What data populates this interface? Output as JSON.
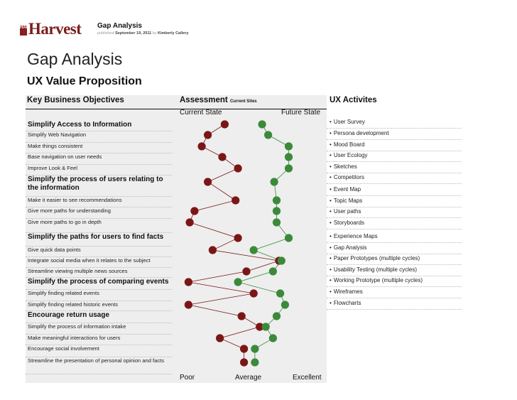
{
  "header": {
    "logo": "Harvest",
    "logo_small": "HARV",
    "doc_title": "Gap Analysis",
    "meta_prefix": "published",
    "meta_date": "September 19, 2011",
    "meta_by": "by",
    "meta_author": "Kimberly Callery"
  },
  "title": "Gap Analysis",
  "subtitle": "UX Value Proposition",
  "columns": {
    "objectives": "Key Business Objectives",
    "assessment": "Assessment",
    "assessment_note": "Current Sites",
    "activities": "UX Activites",
    "current": "Current State",
    "future": "Future State"
  },
  "scale": {
    "poor": "Poor",
    "average": "Average",
    "excellent": "Excellent"
  },
  "activities": [
    "User Survey",
    "Persona development",
    "Mood Board",
    "User Ecology",
    "Sketches",
    "Competitors",
    "Event Map",
    "Topic Maps",
    "User paths",
    "Storyboards",
    "Experience Maps",
    "Gap Analysis",
    "Paper Prototypes (multiple cycles)",
    "Usability Testing (multiple cycles)",
    "Working Prototype (multiple cycles)",
    "Wireframes",
    "Flowcharts"
  ],
  "colors": {
    "current": "#7b1616",
    "future": "#3b8a3b",
    "band": "#eeeeee"
  },
  "chart_data": {
    "type": "line",
    "title": "Assessment",
    "xlabel": "",
    "xlim": [
      0,
      10
    ],
    "xticks": [
      "Poor",
      "Average",
      "Excellent"
    ],
    "categories": [
      "Simplify Access to Information",
      "Simplify Web Navigation",
      "Make things consistent",
      "Base navigation on user needs",
      "Improve Look & Feel",
      "Simplify the process of users relating to the information",
      "Make it easier to see recommendations",
      "Give more paths for understanding",
      "Give more paths to go in depth",
      "Simplify the paths for users to find facts",
      "Give quick data points",
      "Integrate social media when it relates to the subject",
      "Streamline viewing multiple news sources",
      "Simplify the process of comparing events",
      "Simplify finding related events",
      "Simplify finding related historic events",
      "Encourage return usage",
      "Simplify the process of information intake",
      "Make meaningful interactions for users",
      "Encourage social involvement",
      "Streamline the presentation of personal opinion and facts"
    ],
    "major": [
      true,
      false,
      false,
      false,
      false,
      true,
      false,
      false,
      false,
      true,
      false,
      false,
      false,
      true,
      false,
      false,
      true,
      false,
      false,
      false,
      false
    ],
    "series": [
      {
        "name": "Current State",
        "values": [
          3.2,
          1.8,
          1.3,
          3.0,
          4.3,
          1.8,
          4.1,
          0.7,
          0.3,
          4.3,
          2.2,
          7.7,
          5.0,
          0.2,
          5.6,
          0.2,
          4.6,
          6.1,
          2.8,
          4.8,
          4.8
        ]
      },
      {
        "name": "Future State",
        "values": [
          6.3,
          6.8,
          8.5,
          8.5,
          8.5,
          7.3,
          7.5,
          7.5,
          7.5,
          8.5,
          5.6,
          7.9,
          7.2,
          4.3,
          7.8,
          8.2,
          7.5,
          6.6,
          7.2,
          5.7,
          5.7
        ]
      }
    ]
  }
}
